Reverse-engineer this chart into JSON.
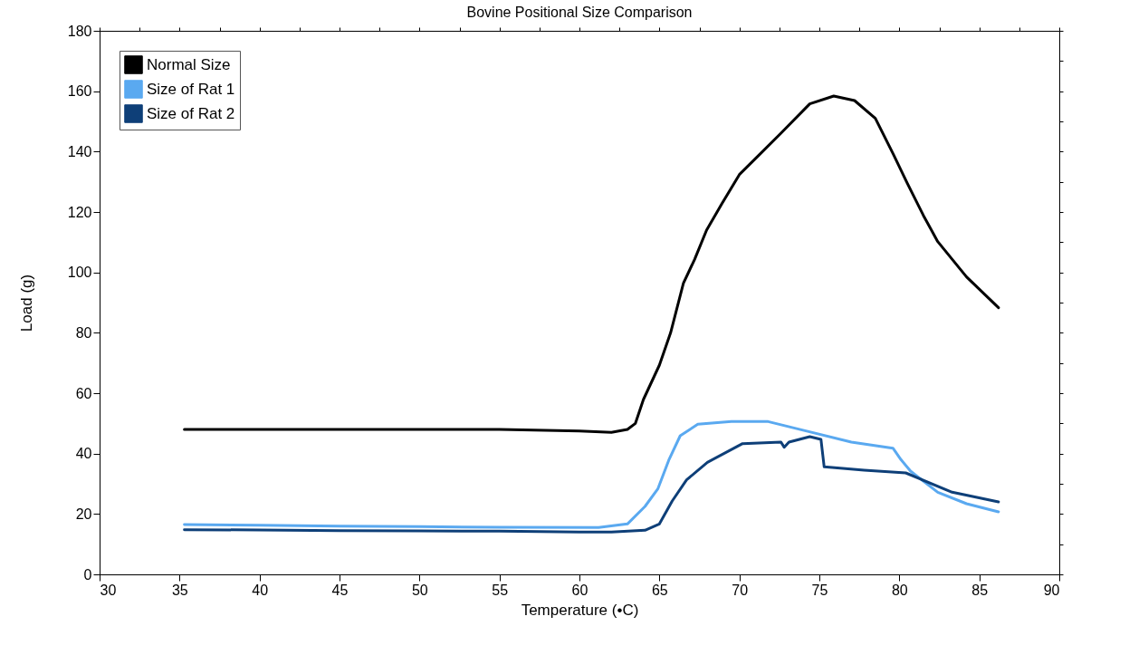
{
  "chart_data": {
    "type": "line",
    "title": "Bovine Positional Size Comparison",
    "xlabel": "Temperature (•C)",
    "ylabel": "Load (g)",
    "xlim": [
      30,
      90
    ],
    "xticks": [
      30,
      35,
      40,
      45,
      50,
      55,
      60,
      65,
      70,
      75,
      80,
      85,
      90
    ],
    "ylim": [
      0,
      180
    ],
    "yticks": [
      0,
      20,
      40,
      60,
      80,
      100,
      120,
      140,
      160,
      180
    ],
    "grid": false,
    "legend": "top left",
    "marker": "none",
    "line_style": "solid",
    "series": [
      {
        "name": "Normal Size",
        "color": "#000000",
        "x": [
          35.3,
          40,
          45,
          50,
          55,
          60,
          62,
          63,
          63.5,
          64,
          65,
          65.7,
          66.5,
          67.2,
          67.95,
          68.9,
          70,
          71.1,
          72.6,
          74.4,
          75.9,
          77.2,
          78.5,
          79.6,
          80.5,
          81.5,
          82.4,
          84.2,
          86.2
        ],
        "values": [
          48,
          48,
          48,
          48,
          48,
          47.5,
          47,
          48,
          50,
          57.9,
          69.3,
          80,
          96.4,
          104.3,
          114,
          122.7,
          132.4,
          138.2,
          146.1,
          155.8,
          158.4,
          156.9,
          151,
          139.4,
          129.5,
          118.9,
          110.2,
          98.5,
          88.3
        ]
      },
      {
        "name": "Size of Rat 1",
        "color": "#5aa9f0",
        "x": [
          35.3,
          40,
          45,
          50,
          55,
          61.2,
          63,
          64.1,
          64.9,
          65.6,
          66.3,
          67.4,
          69.5,
          71.8,
          74.1,
          77,
          79.6,
          80.1,
          80.7,
          82.4,
          84.2,
          86.2
        ],
        "values": [
          16.5,
          16.3,
          16,
          15.8,
          15.6,
          15.5,
          16.7,
          22.5,
          28.3,
          38,
          45.9,
          49.7,
          50.6,
          50.6,
          47.6,
          43.8,
          41.8,
          38,
          34.2,
          27.2,
          23.4,
          20.7
        ]
      },
      {
        "name": "Size of Rat 2",
        "color": "#0e3f78",
        "x": [
          35.3,
          40,
          45,
          50,
          55,
          60,
          62,
          64.1,
          65,
          65.8,
          66.7,
          68,
          70.2,
          72.6,
          72.8,
          73.1,
          74.4,
          75.1,
          75.3,
          77.8,
          80.4,
          81.3,
          83.3,
          86.2
        ],
        "values": [
          14.8,
          14.7,
          14.5,
          14.4,
          14.3,
          14,
          14,
          14.6,
          16.7,
          24.3,
          31.3,
          37.1,
          43.3,
          43.8,
          42.1,
          43.8,
          45.6,
          44.7,
          35.6,
          34.5,
          33.6,
          31.6,
          27.2,
          24
        ]
      }
    ]
  }
}
